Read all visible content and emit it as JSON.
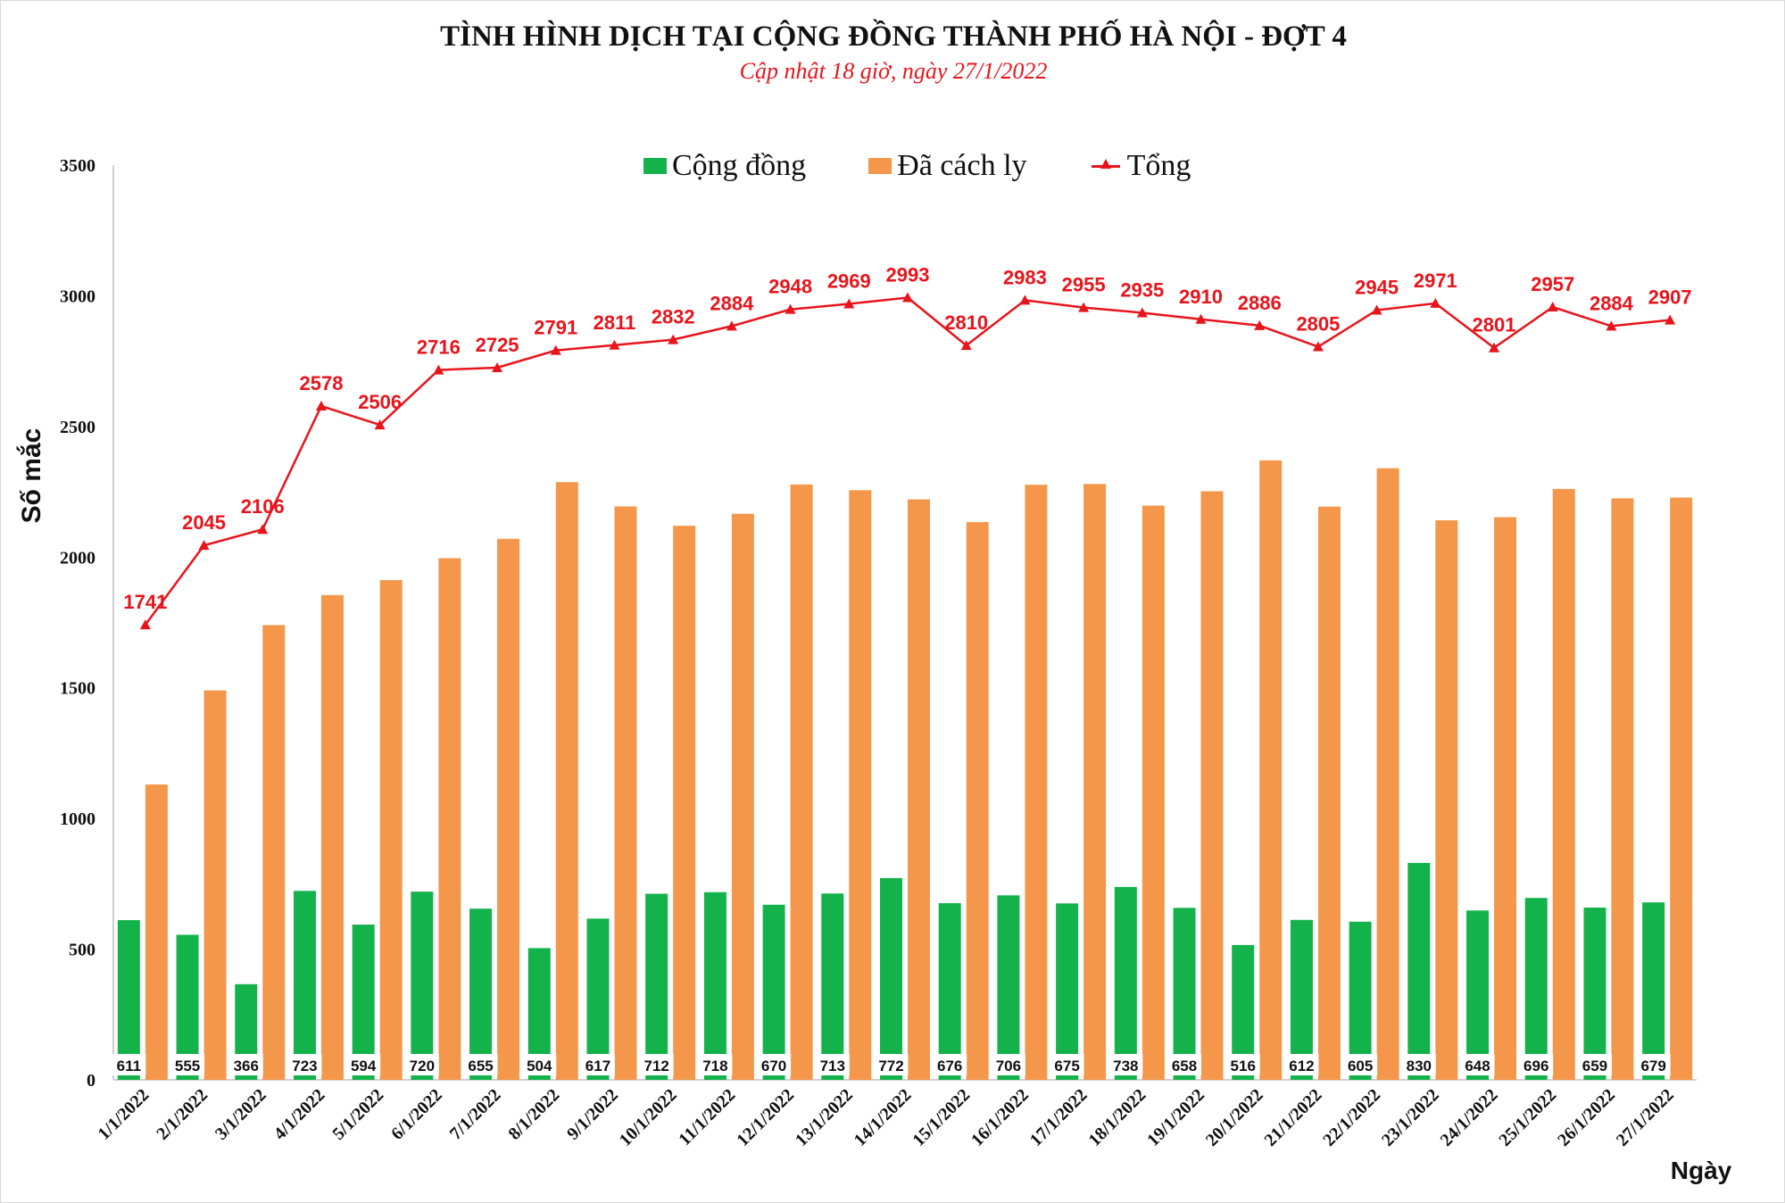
{
  "title": "TÌNH HÌNH DỊCH TẠI CỘNG ĐỒNG THÀNH PHỐ HÀ NỘI - ĐỢT 4",
  "subtitle": "Cập nhật 18 giờ, ngày  27/1/2022",
  "colors": {
    "community": "#13b24b",
    "isolated": "#f4974a",
    "total": "#e8141b"
  },
  "chart_data": {
    "type": "bar",
    "title": "TÌNH HÌNH DỊCH TẠI CỘNG ĐỒNG THÀNH PHỐ HÀ NỘI - ĐỢT 4",
    "subtitle": "Cập nhật 18 giờ, ngày  27/1/2022",
    "xlabel": "Ngày",
    "ylabel": "Số mắc",
    "ylim": [
      0,
      3500
    ],
    "yticks": [
      0,
      500,
      1000,
      1500,
      2000,
      2500,
      3000,
      3500
    ],
    "grid": false,
    "legend_position": "top",
    "categories": [
      "1/1/2022",
      "2/1/2022",
      "3/1/2022",
      "4/1/2022",
      "5/1/2022",
      "6/1/2022",
      "7/1/2022",
      "8/1/2022",
      "9/1/2022",
      "10/1/2022",
      "11/1/2022",
      "12/1/2022",
      "13/1/2022",
      "14/1/2022",
      "15/1/2022",
      "16/1/2022",
      "17/1/2022",
      "18/1/2022",
      "19/1/2022",
      "20/1/2022",
      "21/1/2022",
      "22/1/2022",
      "23/1/2022",
      "24/1/2022",
      "25/1/2022",
      "26/1/2022",
      "27/1/2022"
    ],
    "series": [
      {
        "name": "Cộng đồng",
        "type": "bar",
        "values": [
          611,
          555,
          366,
          723,
          594,
          720,
          655,
          504,
          617,
          712,
          718,
          670,
          713,
          772,
          676,
          706,
          675,
          738,
          658,
          516,
          612,
          605,
          830,
          648,
          696,
          659,
          679
        ]
      },
      {
        "name": "Đã cách ly",
        "type": "bar",
        "values": [
          1130,
          1490,
          1740,
          1855,
          1912,
          1996,
          2070,
          2287,
          2194,
          2120,
          2166,
          2278,
          2256,
          2221,
          2134,
          2277,
          2280,
          2197,
          2252,
          2370,
          2193,
          2340,
          2141,
          2153,
          2261,
          2225,
          2228
        ]
      },
      {
        "name": "Tổng",
        "type": "line",
        "values": [
          1741,
          2045,
          2106,
          2578,
          2506,
          2716,
          2725,
          2791,
          2811,
          2832,
          2884,
          2948,
          2969,
          2993,
          2810,
          2983,
          2955,
          2935,
          2910,
          2886,
          2805,
          2945,
          2971,
          2801,
          2957,
          2884,
          2907
        ]
      }
    ]
  }
}
